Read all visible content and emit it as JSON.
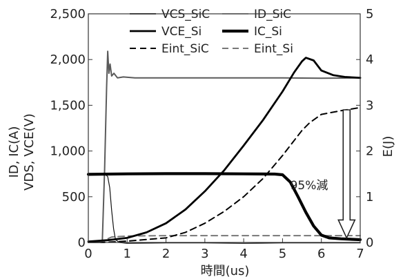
{
  "chart_data": {
    "type": "line",
    "xlabel": "時間(us)",
    "ylabel_left": [
      "ID, IC(A)",
      "VDS, VCE(V)"
    ],
    "ylabel_right": "E(J)",
    "xlim": [
      0,
      7
    ],
    "ylim_left": [
      0,
      2500
    ],
    "ylim_right": [
      0,
      5
    ],
    "x_ticks": [
      "0",
      "1",
      "2",
      "3",
      "4",
      "5",
      "6",
      "7"
    ],
    "y_left_ticks": [
      "0",
      "500",
      "1,000",
      "1,500",
      "2,000",
      "2,500"
    ],
    "y_right_ticks": [
      "0",
      "1",
      "2",
      "3",
      "4",
      "5"
    ],
    "grid": false,
    "legend": "top",
    "annotation": {
      "text": "95%減",
      "arrow_from": 2.9,
      "arrow_to": 0.1,
      "arrow_x": 6.65
    },
    "series": [
      {
        "name": "VCS_SiC",
        "axis": "left",
        "color": "#5a5a5a",
        "dash": "solid",
        "width": "medium",
        "x": [
          0,
          0.3,
          0.36,
          0.42,
          0.47,
          0.5,
          0.53,
          0.56,
          0.6,
          0.66,
          0.75,
          0.9,
          1.2,
          2,
          3,
          4,
          5,
          6,
          7
        ],
        "y": [
          0,
          0,
          20,
          800,
          1700,
          2090,
          1850,
          1950,
          1820,
          1850,
          1800,
          1810,
          1800,
          1800,
          1800,
          1800,
          1800,
          1795,
          1800
        ]
      },
      {
        "name": "ID_SiC",
        "axis": "left",
        "color": "#111111",
        "dash": "solid",
        "width": "thin",
        "x": [
          0,
          0.2,
          0.35,
          0.45,
          0.5,
          0.55,
          0.6,
          0.65,
          0.7,
          0.8,
          1,
          2,
          3,
          4,
          5,
          6,
          7
        ],
        "y": [
          745,
          745,
          745,
          740,
          720,
          600,
          350,
          150,
          30,
          0,
          -10,
          -5,
          -5,
          -10,
          -5,
          -5,
          -5
        ]
      },
      {
        "name": "VCE_Si",
        "axis": "left",
        "color": "#000000",
        "dash": "solid",
        "width": "bold",
        "x": [
          0,
          0.5,
          1,
          1.5,
          2,
          2.5,
          3,
          3.5,
          4,
          4.5,
          5,
          5.3,
          5.5,
          5.6,
          5.8,
          6,
          6.3,
          6.6,
          7
        ],
        "y": [
          10,
          25,
          50,
          110,
          210,
          360,
          560,
          790,
          1060,
          1340,
          1650,
          1860,
          1980,
          2020,
          1990,
          1880,
          1830,
          1810,
          1800
        ]
      },
      {
        "name": "IC_Si",
        "axis": "left",
        "color": "#000000",
        "dash": "solid",
        "width": "heavy",
        "x": [
          0,
          1,
          2,
          3,
          4,
          4.8,
          5,
          5.2,
          5.4,
          5.6,
          5.8,
          6,
          6.2,
          6.5,
          7
        ],
        "y": [
          745,
          750,
          752,
          752,
          750,
          748,
          740,
          660,
          500,
          330,
          180,
          80,
          50,
          40,
          30
        ]
      },
      {
        "name": "Eint_SiC",
        "axis": "right",
        "color": "#000000",
        "dash": "dashed",
        "width": "medium",
        "x": [
          0,
          0.4,
          0.6,
          1,
          2,
          2.5,
          3,
          3.5,
          4,
          4.5,
          5,
          5.5,
          5.7,
          6,
          6.5,
          7
        ],
        "y": [
          0,
          0,
          0.01,
          0.03,
          0.1,
          0.22,
          0.42,
          0.68,
          1.0,
          1.4,
          1.9,
          2.45,
          2.62,
          2.8,
          2.88,
          2.95
        ]
      },
      {
        "name": "Eint_Si",
        "axis": "right",
        "color": "#777777",
        "dash": "dashed",
        "width": "medium",
        "x": [
          0,
          0.4,
          0.5,
          0.6,
          0.8,
          1,
          2,
          3,
          4,
          5,
          6,
          7
        ],
        "y": [
          0,
          0.02,
          0.08,
          0.12,
          0.13,
          0.14,
          0.15,
          0.15,
          0.15,
          0.15,
          0.15,
          0.15
        ]
      }
    ]
  }
}
